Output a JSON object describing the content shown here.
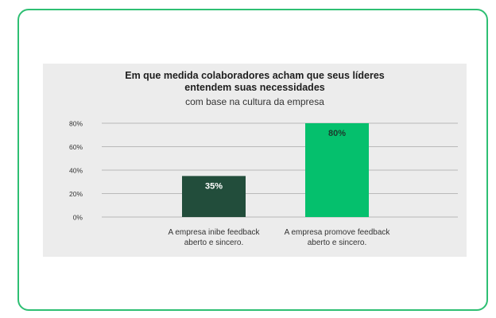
{
  "chart_data": {
    "type": "bar",
    "title": "Em que medida colaboradores acham que seus líderes entendem suas necessidades",
    "title_lines": [
      "Em que medida colaboradores acham que seus líderes",
      "entendem suas necessidades"
    ],
    "subtitle": "com base na cultura da empresa",
    "categories": [
      "A empresa inibe feedback aberto e sincero.",
      "A empresa promove feedback aberto e sincero."
    ],
    "category_lines": [
      [
        "A empresa inibe feedback",
        "aberto e sincero."
      ],
      [
        "A empresa promove feedback",
        "aberto e sincero."
      ]
    ],
    "values": [
      35,
      80
    ],
    "data_labels": [
      "35%",
      "80%"
    ],
    "colors": [
      "#224d3b",
      "#05c06d"
    ],
    "label_colors": [
      "#ffffff",
      "#1c3a2c"
    ],
    "ylim": [
      0,
      80
    ],
    "yticks": [
      0,
      20,
      40,
      60,
      80
    ],
    "ytick_labels": [
      "0%",
      "20%",
      "40%",
      "60%",
      "80%"
    ],
    "grid": true,
    "xlabel": "",
    "ylabel": ""
  },
  "colors": {
    "border": "#2ebf73",
    "panel": "#ececec",
    "grid": "#b9b9b9"
  }
}
